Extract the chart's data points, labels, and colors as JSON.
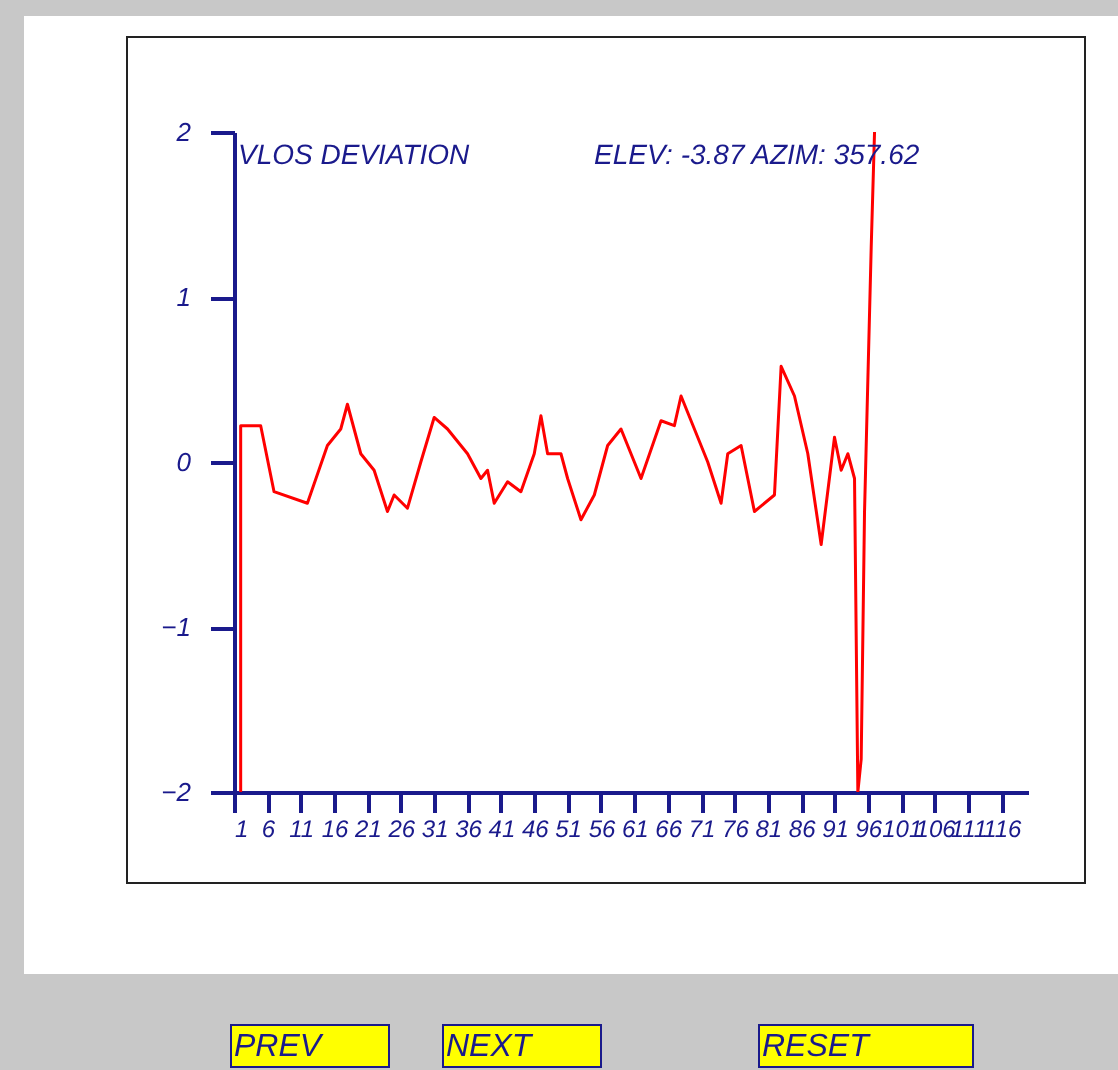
{
  "chart_data": {
    "type": "line",
    "annotations": [
      "VLOS DEVIATION",
      "ELEV:  -3.87   AZIM: 357.62",
      "PREV",
      "NEXT",
      "RESET"
    ],
    "xlim": [
      1,
      120
    ],
    "xticks": [
      1,
      6,
      11,
      16,
      21,
      26,
      31,
      36,
      41,
      46,
      51,
      56,
      61,
      66,
      71,
      76,
      81,
      86,
      91,
      96,
      101,
      106,
      111,
      116
    ],
    "ylim": [
      -2,
      2
    ],
    "yticks": [
      -2,
      -1,
      0,
      1,
      2
    ],
    "grid": false,
    "legend": false,
    "series": [
      {
        "color": "#ff0000",
        "x": [
          2,
          2,
          5,
          7,
          12,
          15,
          17,
          18,
          20,
          22,
          24,
          25,
          27,
          29,
          31,
          33,
          36,
          38,
          39,
          40,
          42,
          44,
          46,
          47,
          48,
          50,
          51,
          53,
          55,
          57,
          59,
          61,
          62,
          65,
          67,
          68,
          70,
          72,
          74,
          75,
          77,
          79,
          82,
          83,
          85,
          87,
          89,
          91,
          92,
          93,
          94,
          94.5,
          95,
          95.5,
          96,
          96.5,
          97
        ],
        "values": [
          -2,
          0.22,
          0.22,
          -0.18,
          -0.25,
          0.1,
          0.2,
          0.35,
          0.05,
          -0.05,
          -0.3,
          -0.2,
          -0.28,
          0,
          0.27,
          0.2,
          0.05,
          -0.1,
          -0.05,
          -0.25,
          -0.12,
          -0.18,
          0.05,
          0.28,
          0.05,
          0.05,
          -0.1,
          -0.35,
          -0.2,
          0.1,
          0.2,
          0,
          -0.1,
          0.25,
          0.22,
          0.4,
          0.2,
          0,
          -0.25,
          0.05,
          0.1,
          -0.3,
          -0.2,
          0.58,
          0.4,
          0.05,
          -0.5,
          0.15,
          -0.05,
          0.05,
          -0.1,
          -2,
          -1.8,
          -0.3,
          0.5,
          1.3,
          2
        ]
      }
    ]
  }
}
